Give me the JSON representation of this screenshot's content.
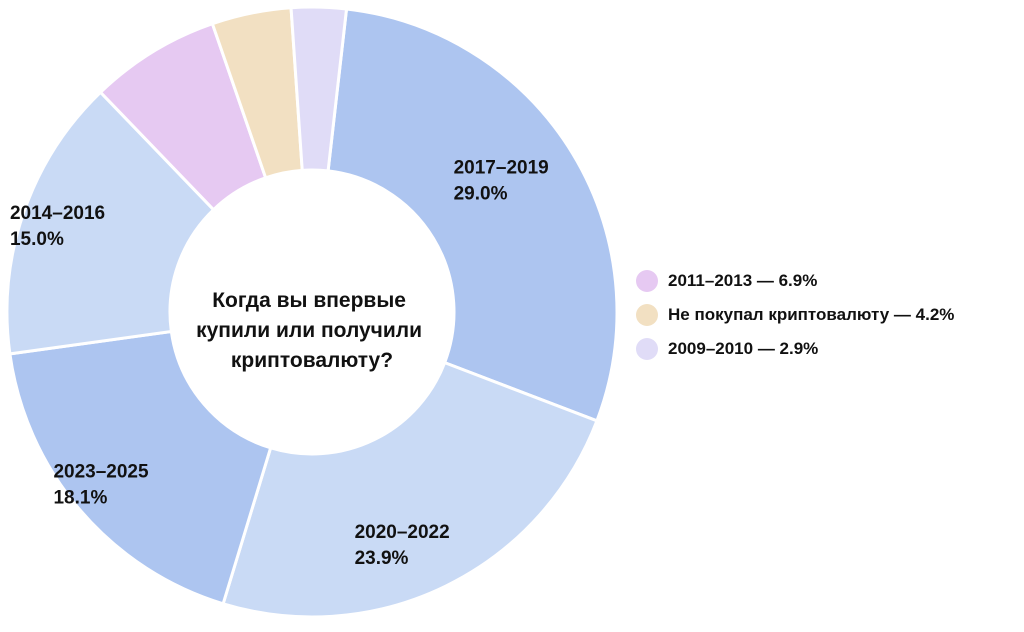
{
  "chart_data": {
    "type": "pie",
    "variant": "donut",
    "title": "Когда вы впервые купили или получили криптовалюту?",
    "title_lines": [
      "Когда вы впервые",
      "купили или получили",
      "криптовалюту?"
    ],
    "slices": [
      {
        "label": "2017–2019",
        "value": 29.0,
        "display": "29.0%",
        "color": "#adc5f0"
      },
      {
        "label": "2020–2022",
        "value": 23.9,
        "display": "23.9%",
        "color": "#c9daf5"
      },
      {
        "label": "2023–2025",
        "value": 18.1,
        "display": "18.1%",
        "color": "#adc5f0"
      },
      {
        "label": "2014–2016",
        "value": 15.0,
        "display": "15.0%",
        "color": "#c9daf5"
      },
      {
        "label": "2011–2013",
        "value": 6.9,
        "display": "6.9%",
        "color": "#e6c9f2"
      },
      {
        "label": "Не покупал криптовалюту",
        "value": 4.2,
        "display": "4.2%",
        "color": "#f2e0c2"
      },
      {
        "label": "2009–2010",
        "value": 2.9,
        "display": "2.9%",
        "color": "#e0dcf7"
      }
    ],
    "legend": {
      "placement": "right",
      "items": [
        {
          "text": "2011–2013 — 6.9%",
          "color": "#e6c9f2"
        },
        {
          "text": "Не покупал криптовалюту — 4.2%",
          "color": "#f2e0c2"
        },
        {
          "text": "2009–2010 — 2.9%",
          "color": "#e0dcf7"
        }
      ]
    }
  }
}
